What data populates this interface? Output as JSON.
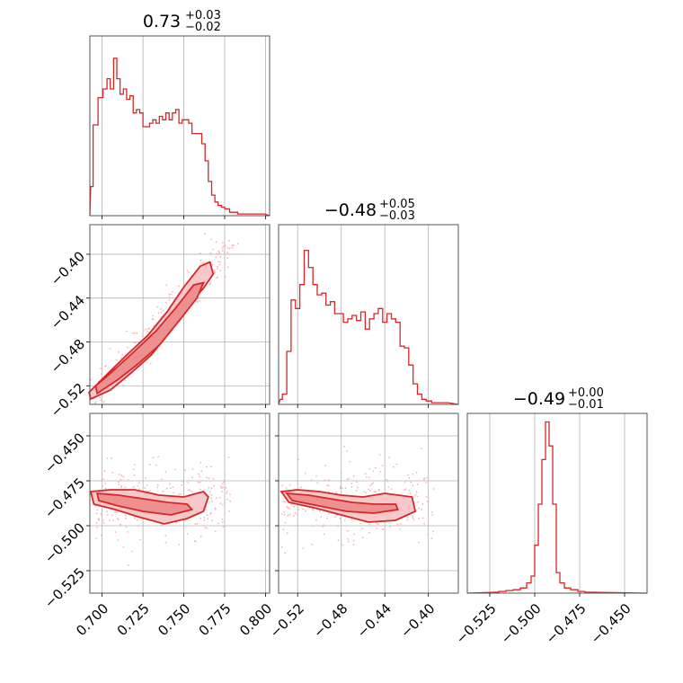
{
  "chart_data": [
    {
      "type": "histogram",
      "panel": "diag-0",
      "title": {
        "median": "0.73",
        "plus": "+0.03",
        "minus": "−0.02"
      },
      "xlim": [
        0.6925,
        0.8025
      ],
      "x_ticks": [
        0.7,
        0.725,
        0.75,
        0.775,
        0.8
      ],
      "bins": [
        [
          0.693,
          0.17
        ],
        [
          0.696,
          0.53
        ],
        [
          0.699,
          0.69
        ],
        [
          0.702,
          0.74
        ],
        [
          0.704,
          0.8
        ],
        [
          0.706,
          0.74
        ],
        [
          0.708,
          0.92
        ],
        [
          0.71,
          0.8
        ],
        [
          0.712,
          0.71
        ],
        [
          0.714,
          0.74
        ],
        [
          0.716,
          0.68
        ],
        [
          0.718,
          0.7
        ],
        [
          0.72,
          0.6
        ],
        [
          0.722,
          0.62
        ],
        [
          0.724,
          0.6
        ],
        [
          0.726,
          0.52
        ],
        [
          0.728,
          0.52
        ],
        [
          0.73,
          0.54
        ],
        [
          0.732,
          0.56
        ],
        [
          0.734,
          0.54
        ],
        [
          0.736,
          0.58
        ],
        [
          0.738,
          0.56
        ],
        [
          0.74,
          0.6
        ],
        [
          0.742,
          0.56
        ],
        [
          0.744,
          0.6
        ],
        [
          0.746,
          0.62
        ],
        [
          0.748,
          0.54
        ],
        [
          0.75,
          0.56
        ],
        [
          0.752,
          0.56
        ],
        [
          0.754,
          0.54
        ],
        [
          0.756,
          0.48
        ],
        [
          0.758,
          0.48
        ],
        [
          0.76,
          0.48
        ],
        [
          0.762,
          0.42
        ],
        [
          0.764,
          0.32
        ],
        [
          0.766,
          0.2
        ],
        [
          0.768,
          0.12
        ],
        [
          0.77,
          0.08
        ],
        [
          0.772,
          0.06
        ],
        [
          0.774,
          0.05
        ],
        [
          0.776,
          0.04
        ],
        [
          0.78,
          0.02
        ],
        [
          0.786,
          0.01
        ],
        [
          0.795,
          0.01
        ]
      ]
    },
    {
      "type": "histogram",
      "panel": "diag-1",
      "title": {
        "median": "−0.48",
        "plus": "+0.05",
        "minus": "−0.03"
      },
      "xlim": [
        -0.5375,
        -0.3725
      ],
      "x_ticks": [
        -0.52,
        -0.48,
        -0.44,
        -0.4
      ],
      "bins": [
        [
          -0.536,
          0.03
        ],
        [
          -0.532,
          0.06
        ],
        [
          -0.528,
          0.31
        ],
        [
          -0.524,
          0.61
        ],
        [
          -0.52,
          0.56
        ],
        [
          -0.516,
          0.7
        ],
        [
          -0.512,
          0.9
        ],
        [
          -0.508,
          0.8
        ],
        [
          -0.504,
          0.7
        ],
        [
          -0.5,
          0.64
        ],
        [
          -0.496,
          0.65
        ],
        [
          -0.492,
          0.58
        ],
        [
          -0.488,
          0.6
        ],
        [
          -0.484,
          0.53
        ],
        [
          -0.48,
          0.53
        ],
        [
          -0.476,
          0.48
        ],
        [
          -0.472,
          0.5
        ],
        [
          -0.468,
          0.52
        ],
        [
          -0.464,
          0.49
        ],
        [
          -0.46,
          0.54
        ],
        [
          -0.456,
          0.44
        ],
        [
          -0.452,
          0.5
        ],
        [
          -0.448,
          0.53
        ],
        [
          -0.444,
          0.56
        ],
        [
          -0.44,
          0.48
        ],
        [
          -0.436,
          0.53
        ],
        [
          -0.432,
          0.5
        ],
        [
          -0.428,
          0.48
        ],
        [
          -0.424,
          0.34
        ],
        [
          -0.42,
          0.33
        ],
        [
          -0.416,
          0.23
        ],
        [
          -0.412,
          0.12
        ],
        [
          -0.408,
          0.06
        ],
        [
          -0.404,
          0.03
        ],
        [
          -0.4,
          0.02
        ],
        [
          -0.394,
          0.01
        ],
        [
          -0.386,
          0.01
        ]
      ]
    },
    {
      "type": "histogram",
      "panel": "diag-2",
      "title": {
        "median": "−0.49",
        "plus": "+0.00",
        "minus": "−0.01"
      },
      "xlim": [
        -0.5375,
        -0.4375
      ],
      "x_ticks": [
        -0.525,
        -0.5,
        -0.475,
        -0.45
      ],
      "bins": [
        [
          -0.522,
          0.005
        ],
        [
          -0.518,
          0.01
        ],
        [
          -0.514,
          0.015
        ],
        [
          -0.51,
          0.02
        ],
        [
          -0.506,
          0.03
        ],
        [
          -0.503,
          0.06
        ],
        [
          -0.501,
          0.1
        ],
        [
          -0.499,
          0.28
        ],
        [
          -0.497,
          0.52
        ],
        [
          -0.495,
          0.78
        ],
        [
          -0.493,
          1.0
        ],
        [
          -0.491,
          0.86
        ],
        [
          -0.489,
          0.52
        ],
        [
          -0.487,
          0.12
        ],
        [
          -0.485,
          0.06
        ],
        [
          -0.482,
          0.03
        ],
        [
          -0.478,
          0.02
        ],
        [
          -0.474,
          0.01
        ],
        [
          -0.47,
          0.005
        ]
      ]
    },
    {
      "type": "contour",
      "panel": "row1-col0",
      "xlim": [
        0.6925,
        0.8025
      ],
      "ylim": [
        -0.537,
        -0.373
      ],
      "x_ticks": [
        0.7,
        0.725,
        0.75,
        0.775,
        0.8
      ],
      "y_ticks": [
        -0.52,
        -0.48,
        -0.44,
        -0.4
      ],
      "outer_contour": [
        [
          0.693,
          -0.532
        ],
        [
          0.705,
          -0.524
        ],
        [
          0.718,
          -0.508
        ],
        [
          0.73,
          -0.492
        ],
        [
          0.742,
          -0.47
        ],
        [
          0.752,
          -0.448
        ],
        [
          0.762,
          -0.431
        ],
        [
          0.768,
          -0.418
        ],
        [
          0.766,
          -0.407
        ],
        [
          0.76,
          -0.411
        ],
        [
          0.75,
          -0.43
        ],
        [
          0.74,
          -0.452
        ],
        [
          0.728,
          -0.474
        ],
        [
          0.715,
          -0.492
        ],
        [
          0.7,
          -0.514
        ],
        [
          0.692,
          -0.526
        ]
      ],
      "inner_contour": [
        [
          0.697,
          -0.527
        ],
        [
          0.71,
          -0.514
        ],
        [
          0.722,
          -0.5
        ],
        [
          0.735,
          -0.483
        ],
        [
          0.748,
          -0.459
        ],
        [
          0.758,
          -0.44
        ],
        [
          0.762,
          -0.426
        ],
        [
          0.756,
          -0.428
        ],
        [
          0.745,
          -0.449
        ],
        [
          0.733,
          -0.47
        ],
        [
          0.718,
          -0.491
        ],
        [
          0.704,
          -0.51
        ],
        [
          0.696,
          -0.52
        ]
      ]
    },
    {
      "type": "contour",
      "panel": "row2-col0",
      "xlim": [
        0.6925,
        0.8025
      ],
      "ylim": [
        -0.5375,
        -0.4375
      ],
      "x_ticks": [
        0.7,
        0.725,
        0.75,
        0.775,
        0.8
      ],
      "y_ticks": [
        -0.45,
        -0.475,
        -0.5,
        -0.525
      ],
      "outer_contour": [
        [
          0.693,
          -0.481
        ],
        [
          0.705,
          -0.48
        ],
        [
          0.72,
          -0.48
        ],
        [
          0.735,
          -0.483
        ],
        [
          0.75,
          -0.484
        ],
        [
          0.762,
          -0.481
        ],
        [
          0.765,
          -0.484
        ],
        [
          0.762,
          -0.492
        ],
        [
          0.752,
          -0.496
        ],
        [
          0.738,
          -0.499
        ],
        [
          0.722,
          -0.495
        ],
        [
          0.708,
          -0.491
        ],
        [
          0.695,
          -0.488
        ]
      ],
      "inner_contour": [
        [
          0.697,
          -0.482
        ],
        [
          0.71,
          -0.483
        ],
        [
          0.725,
          -0.485
        ],
        [
          0.74,
          -0.487
        ],
        [
          0.752,
          -0.488
        ],
        [
          0.755,
          -0.491
        ],
        [
          0.742,
          -0.494
        ],
        [
          0.725,
          -0.492
        ],
        [
          0.71,
          -0.489
        ],
        [
          0.698,
          -0.486
        ]
      ]
    },
    {
      "type": "contour",
      "panel": "row2-col1",
      "xlim": [
        -0.5375,
        -0.3725
      ],
      "ylim": [
        -0.5375,
        -0.4375
      ],
      "x_ticks": [
        -0.52,
        -0.48,
        -0.44,
        -0.4
      ],
      "y_ticks": [
        -0.45,
        -0.475,
        -0.5,
        -0.525
      ],
      "outer_contour": [
        [
          -0.535,
          -0.481
        ],
        [
          -0.52,
          -0.48
        ],
        [
          -0.5,
          -0.481
        ],
        [
          -0.48,
          -0.483
        ],
        [
          -0.46,
          -0.484
        ],
        [
          -0.44,
          -0.482
        ],
        [
          -0.415,
          -0.484
        ],
        [
          -0.412,
          -0.492
        ],
        [
          -0.43,
          -0.497
        ],
        [
          -0.455,
          -0.498
        ],
        [
          -0.48,
          -0.494
        ],
        [
          -0.505,
          -0.49
        ],
        [
          -0.528,
          -0.487
        ]
      ],
      "inner_contour": [
        [
          -0.53,
          -0.482
        ],
        [
          -0.51,
          -0.483
        ],
        [
          -0.49,
          -0.485
        ],
        [
          -0.47,
          -0.487
        ],
        [
          -0.45,
          -0.488
        ],
        [
          -0.43,
          -0.488
        ],
        [
          -0.428,
          -0.491
        ],
        [
          -0.45,
          -0.493
        ],
        [
          -0.475,
          -0.492
        ],
        [
          -0.5,
          -0.489
        ],
        [
          -0.525,
          -0.486
        ]
      ]
    }
  ],
  "colors": {
    "line": "#d62728",
    "fill_outer": "#f6c8c9",
    "fill_inner": "#ee8f90",
    "points": "#f2b5b6"
  }
}
